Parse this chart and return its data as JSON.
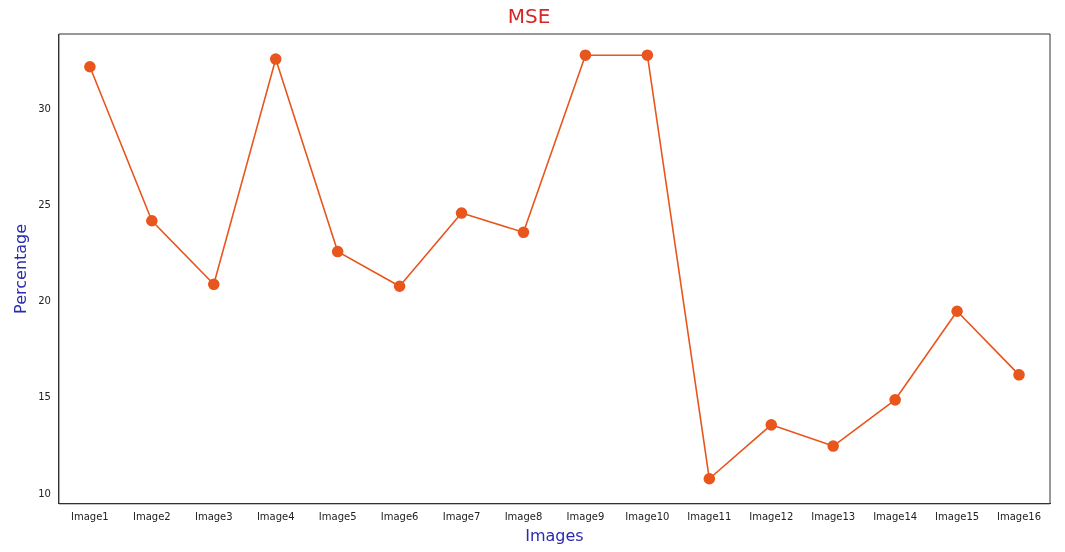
{
  "chart_data": {
    "type": "line",
    "title": "MSE",
    "xlabel": "Images",
    "ylabel": "Percentage",
    "categories": [
      "Image1",
      "Image2",
      "Image3",
      "Image4",
      "Image5",
      "Image6",
      "Image7",
      "Image8",
      "Image9",
      "Image10",
      "Image11",
      "Image12",
      "Image13",
      "Image14",
      "Image15",
      "Image16"
    ],
    "series": [
      {
        "color": "#e8561e",
        "values": [
          32.2,
          24.2,
          20.9,
          32.6,
          22.6,
          20.8,
          24.6,
          23.6,
          32.8,
          32.8,
          10.8,
          13.6,
          12.5,
          14.9,
          19.5,
          16.2
        ]
      }
    ],
    "ylim": [
      9.5,
      33.9
    ],
    "yticks": [
      10,
      15,
      20,
      25,
      30
    ],
    "grid": false,
    "legend": false,
    "marker": "circle",
    "line_style": "solid"
  }
}
